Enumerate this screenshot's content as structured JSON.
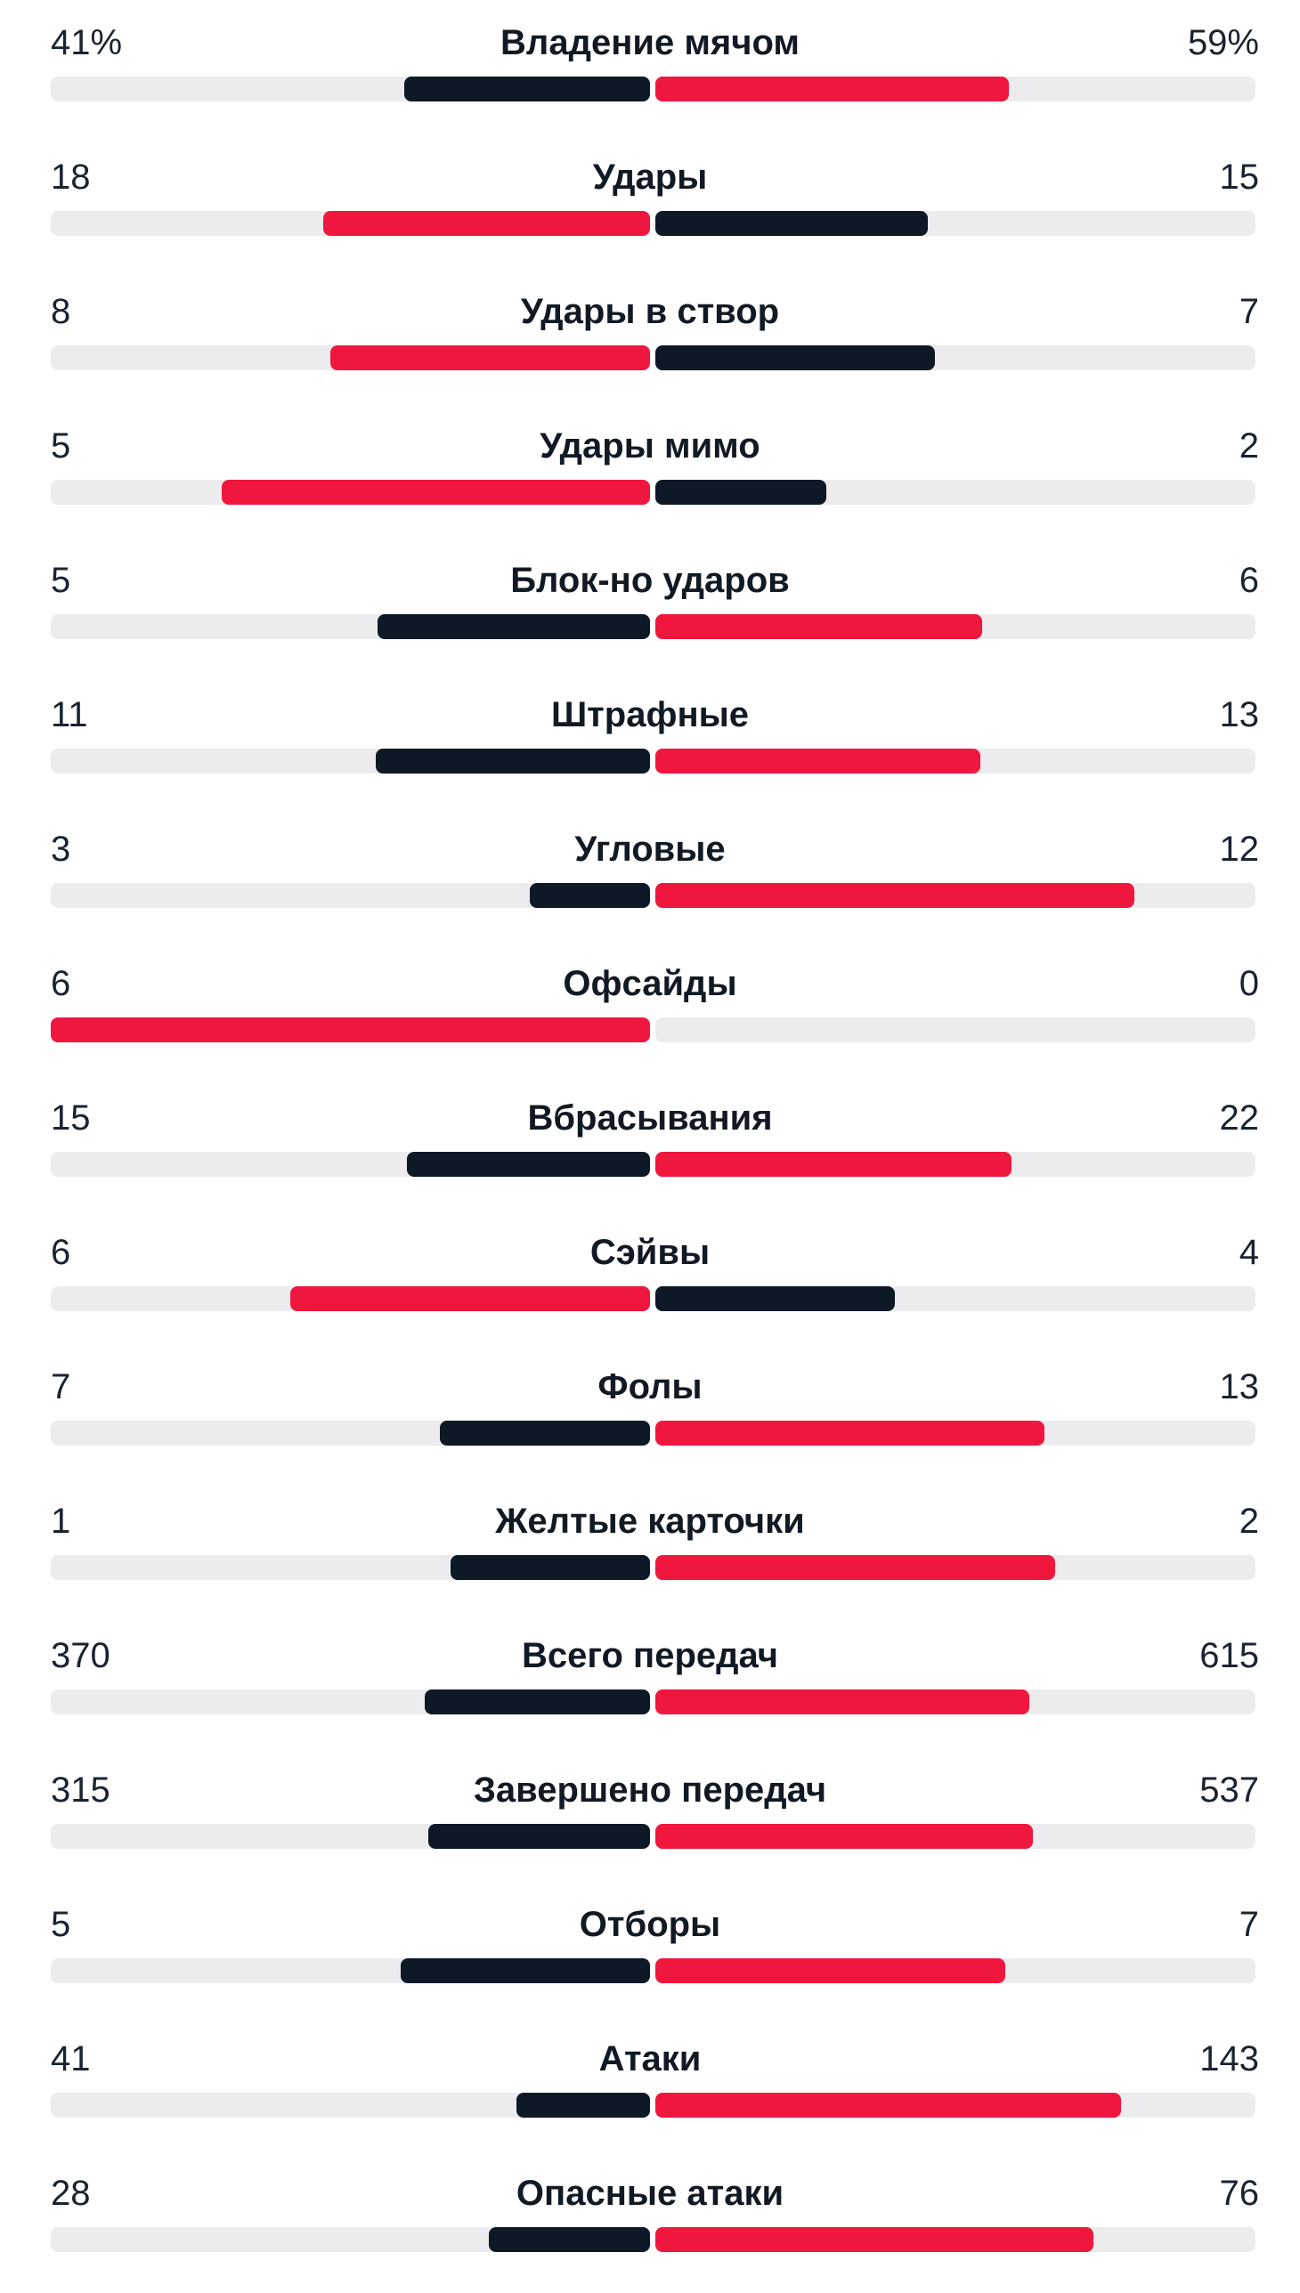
{
  "colors": {
    "leader": "#f0173f",
    "trailer": "#0d1a26",
    "track": "#ececee"
  },
  "stats": [
    {
      "label": "Владение мячом",
      "home": "41%",
      "away": "59%",
      "home_value": 41,
      "away_value": 59
    },
    {
      "label": "Удары",
      "home": "18",
      "away": "15",
      "home_value": 18,
      "away_value": 15
    },
    {
      "label": "Удары в створ",
      "home": "8",
      "away": "7",
      "home_value": 8,
      "away_value": 7
    },
    {
      "label": "Удары мимо",
      "home": "5",
      "away": "2",
      "home_value": 5,
      "away_value": 2
    },
    {
      "label": "Блок-но ударов",
      "home": "5",
      "away": "6",
      "home_value": 5,
      "away_value": 6
    },
    {
      "label": "Штрафные",
      "home": "11",
      "away": "13",
      "home_value": 11,
      "away_value": 13
    },
    {
      "label": "Угловые",
      "home": "3",
      "away": "12",
      "home_value": 3,
      "away_value": 12
    },
    {
      "label": "Офсайды",
      "home": "6",
      "away": "0",
      "home_value": 6,
      "away_value": 0
    },
    {
      "label": "Вбрасывания",
      "home": "15",
      "away": "22",
      "home_value": 15,
      "away_value": 22
    },
    {
      "label": "Сэйвы",
      "home": "6",
      "away": "4",
      "home_value": 6,
      "away_value": 4
    },
    {
      "label": "Фолы",
      "home": "7",
      "away": "13",
      "home_value": 7,
      "away_value": 13
    },
    {
      "label": "Желтые карточки",
      "home": "1",
      "away": "2",
      "home_value": 1,
      "away_value": 2
    },
    {
      "label": "Всего передач",
      "home": "370",
      "away": "615",
      "home_value": 370,
      "away_value": 615
    },
    {
      "label": "Завершено передач",
      "home": "315",
      "away": "537",
      "home_value": 315,
      "away_value": 537
    },
    {
      "label": "Отборы",
      "home": "5",
      "away": "7",
      "home_value": 5,
      "away_value": 7
    },
    {
      "label": "Атаки",
      "home": "41",
      "away": "143",
      "home_value": 41,
      "away_value": 143
    },
    {
      "label": "Опасные атаки",
      "home": "28",
      "away": "76",
      "home_value": 28,
      "away_value": 76
    }
  ]
}
